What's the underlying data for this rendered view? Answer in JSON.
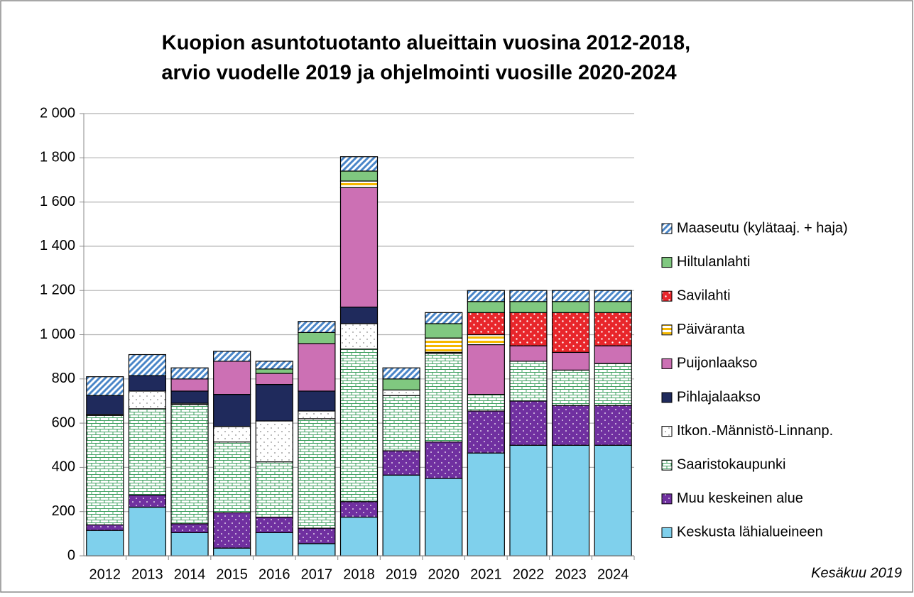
{
  "chart_data": {
    "type": "stacked-bar",
    "title": [
      "Kuopion asuntotuotanto alueittain vuosina 2012-2018,",
      "arvio vuodelle 2019 ja ohjelmointi vuosille 2020-2024"
    ],
    "note": "Kesäkuu 2019",
    "categories": [
      "2012",
      "2013",
      "2014",
      "2015",
      "2016",
      "2017",
      "2018",
      "2019",
      "2020",
      "2021",
      "2022",
      "2023",
      "2024"
    ],
    "ylim": [
      0,
      2000
    ],
    "yticks": [
      0,
      200,
      400,
      600,
      800,
      {
        "value": 1000,
        "label": "1 000"
      },
      {
        "value": 1200,
        "label": "1 200"
      },
      {
        "value": 1400,
        "label": "1 400"
      },
      {
        "value": 1600,
        "label": "1 600"
      },
      {
        "value": 1800,
        "label": "1 800"
      },
      {
        "value": 2000,
        "label": "2 000"
      }
    ],
    "grid": true,
    "legend": "right",
    "series": [
      {
        "name": "Keskusta lähialueineen",
        "color": "#7fd0ec",
        "values": [
          115,
          220,
          105,
          35,
          105,
          55,
          175,
          365,
          350,
          465,
          500,
          500,
          500
        ]
      },
      {
        "name": "Muu keskeinen alue",
        "color": "#7030a0",
        "values": [
          25,
          55,
          40,
          160,
          70,
          70,
          70,
          110,
          165,
          190,
          200,
          180,
          180
        ]
      },
      {
        "name": "Saaristokaupunki",
        "color": "#3fa060",
        "values": [
          495,
          390,
          540,
          320,
          250,
          495,
          690,
          250,
          400,
          75,
          180,
          160,
          190
        ]
      },
      {
        "name": "Itkon.-Männistö-Linnanp.",
        "color": "#555555",
        "values": [
          5,
          80,
          5,
          70,
          185,
          35,
          115,
          25,
          5,
          0,
          0,
          0,
          0
        ]
      },
      {
        "name": "Pihlajalaakso",
        "color": "#1f2a5c",
        "values": [
          85,
          70,
          55,
          145,
          165,
          90,
          75,
          0,
          0,
          0,
          0,
          0,
          0
        ]
      },
      {
        "name": "Puijonlaakso",
        "color": "#cc70b4",
        "values": [
          0,
          0,
          55,
          150,
          50,
          215,
          540,
          0,
          0,
          225,
          70,
          80,
          80
        ]
      },
      {
        "name": "Päiväranta",
        "color": "#f5b800",
        "values": [
          0,
          0,
          0,
          0,
          0,
          0,
          30,
          0,
          65,
          45,
          0,
          0,
          0
        ]
      },
      {
        "name": "Savilahti",
        "color": "#e8262b",
        "values": [
          0,
          0,
          0,
          0,
          0,
          0,
          0,
          0,
          0,
          100,
          150,
          180,
          150
        ]
      },
      {
        "name": "Hiltulanlahti",
        "color": "#80c880",
        "values": [
          0,
          0,
          0,
          0,
          20,
          50,
          45,
          50,
          65,
          50,
          50,
          50,
          50
        ]
      },
      {
        "name": "Maaseutu (kylätaaj. + haja)",
        "color": "#4a86c8",
        "values": [
          85,
          95,
          50,
          45,
          35,
          50,
          65,
          50,
          50,
          50,
          50,
          50,
          50
        ]
      }
    ]
  }
}
